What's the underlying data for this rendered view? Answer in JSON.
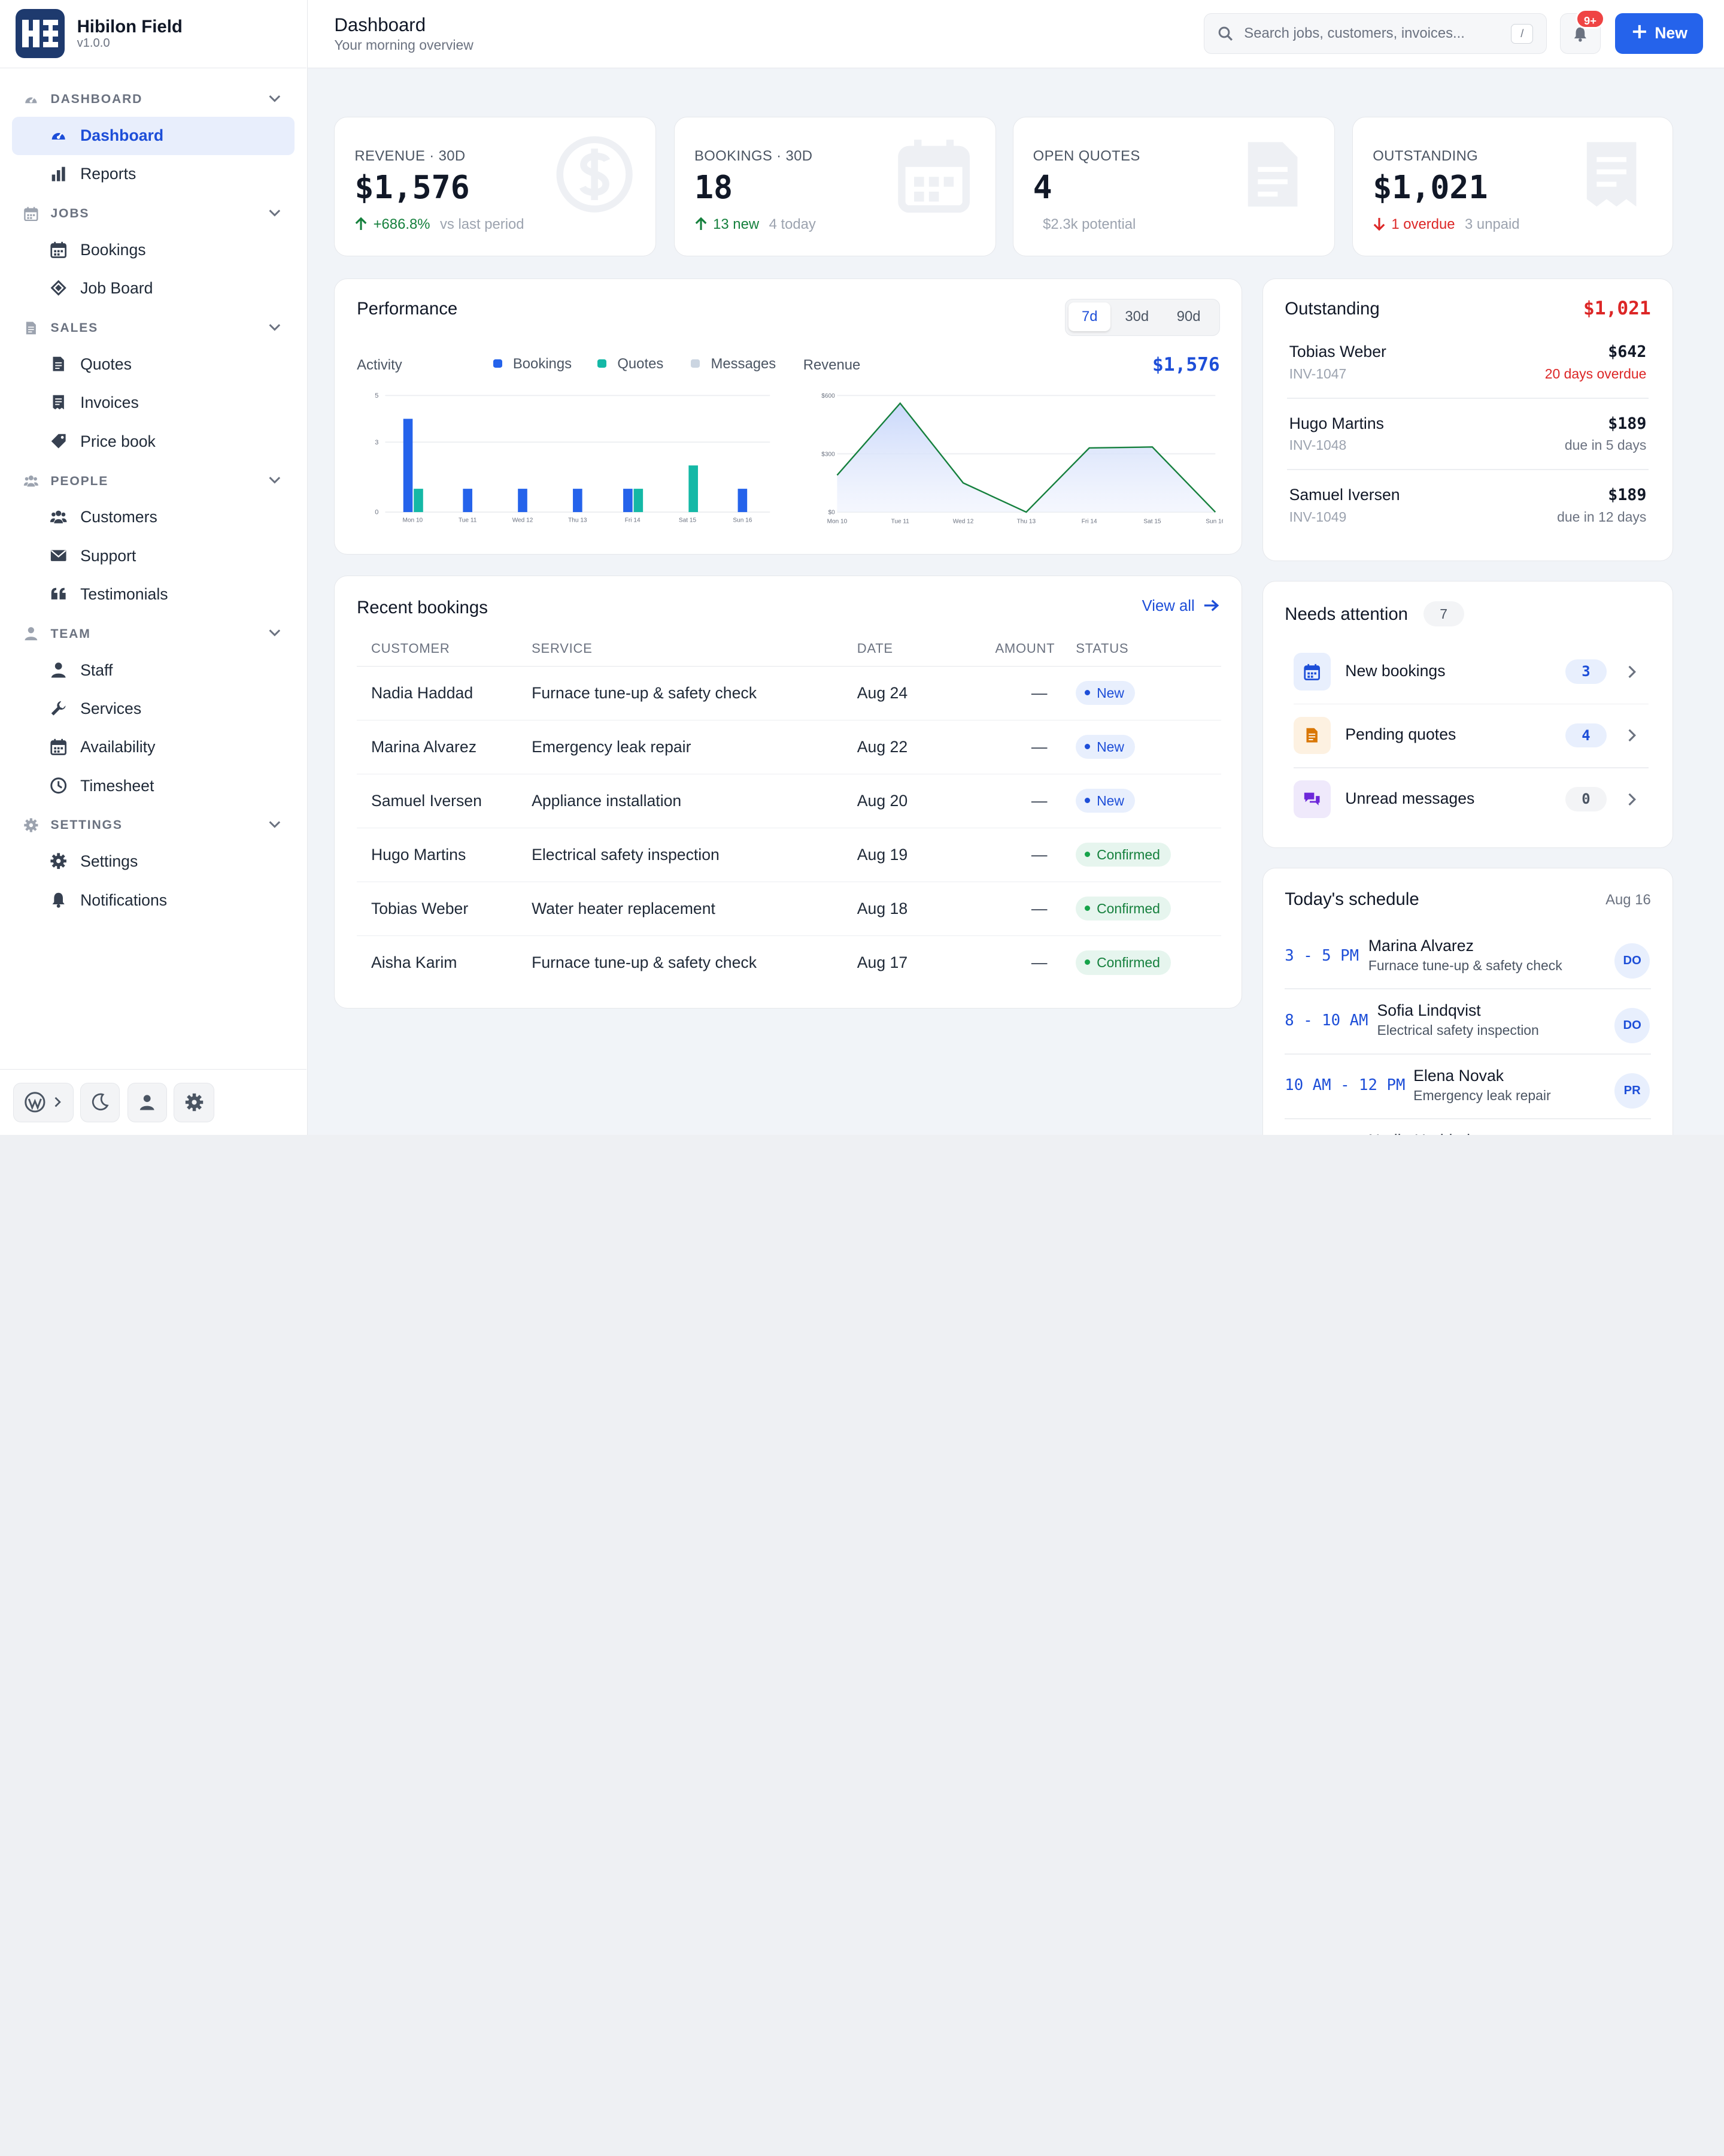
{
  "app": {
    "name": "Hibilon Field",
    "version": "v1.0.0"
  },
  "header": {
    "title": "Dashboard",
    "subtitle": "Your morning overview",
    "search_placeholder": "Search jobs, customers, invoices...",
    "search_shortcut": "/",
    "notification_badge": "9+",
    "new_label": "New"
  },
  "sidebar": {
    "sections": [
      {
        "label": "DASHBOARD",
        "icon": "gauge-icon",
        "items": [
          {
            "label": "Dashboard",
            "icon": "gauge-icon",
            "active": true
          },
          {
            "label": "Reports",
            "icon": "bar-chart-icon"
          }
        ]
      },
      {
        "label": "JOBS",
        "icon": "calendar-icon",
        "items": [
          {
            "label": "Bookings",
            "icon": "calendar-icon"
          },
          {
            "label": "Job Board",
            "icon": "ticket-icon"
          }
        ]
      },
      {
        "label": "SALES",
        "icon": "document-icon",
        "items": [
          {
            "label": "Quotes",
            "icon": "document-icon"
          },
          {
            "label": "Invoices",
            "icon": "invoice-icon"
          },
          {
            "label": "Price book",
            "icon": "tag-icon"
          }
        ]
      },
      {
        "label": "PEOPLE",
        "icon": "users-icon",
        "items": [
          {
            "label": "Customers",
            "icon": "users-icon"
          },
          {
            "label": "Support",
            "icon": "envelope-icon"
          },
          {
            "label": "Testimonials",
            "icon": "quote-icon"
          }
        ]
      },
      {
        "label": "TEAM",
        "icon": "user-icon",
        "items": [
          {
            "label": "Staff",
            "icon": "user-icon"
          },
          {
            "label": "Services",
            "icon": "wrench-icon"
          },
          {
            "label": "Availability",
            "icon": "calendar-icon"
          },
          {
            "label": "Timesheet",
            "icon": "clock-icon"
          }
        ]
      },
      {
        "label": "SETTINGS",
        "icon": "gear-icon",
        "items": [
          {
            "label": "Settings",
            "icon": "gear-icon"
          },
          {
            "label": "Notifications",
            "icon": "bell-icon"
          }
        ]
      }
    ],
    "footer_buttons": [
      "wordpress-icon",
      "moon-icon",
      "user-icon",
      "gear-icon"
    ]
  },
  "kpis": [
    {
      "label": "REVENUE · 30D",
      "value": "$1,576",
      "delta": "+686.8%",
      "delta_dir": "up",
      "note": "vs last period",
      "icon": "dollar-icon"
    },
    {
      "label": "BOOKINGS · 30D",
      "value": "18",
      "delta": "13 new",
      "delta_dir": "up",
      "note": "4 today",
      "icon": "calendar-icon"
    },
    {
      "label": "OPEN QUOTES",
      "value": "4",
      "delta": "",
      "delta_dir": "",
      "note": "$2.3k potential",
      "icon": "document-icon"
    },
    {
      "label": "OUTSTANDING",
      "value": "$1,021",
      "delta": "1 overdue",
      "delta_dir": "down",
      "note": "3 unpaid",
      "icon": "invoice-icon"
    }
  ],
  "performance": {
    "title": "Performance",
    "ranges": [
      "7d",
      "30d",
      "90d"
    ],
    "active_range": "7d",
    "activity_label": "Activity",
    "revenue_label": "Revenue",
    "revenue_total": "$1,576"
  },
  "chart_data": [
    {
      "type": "bar",
      "title": "Activity",
      "categories": [
        "Mon 10",
        "Tue 11",
        "Wed 12",
        "Thu 13",
        "Fri 14",
        "Sat 15",
        "Sun 16"
      ],
      "yticks": [
        0,
        3,
        5
      ],
      "ylim": [
        0,
        5
      ],
      "legend": "top",
      "series": [
        {
          "name": "Bookings",
          "color": "#2563eb",
          "values": [
            4,
            1,
            1,
            1,
            1,
            0,
            1
          ]
        },
        {
          "name": "Quotes",
          "color": "#14b8a6",
          "values": [
            1,
            0,
            0,
            0,
            1,
            2,
            0
          ]
        },
        {
          "name": "Messages",
          "color": "#cbd5e1",
          "values": [
            0,
            0,
            0,
            0,
            0,
            0,
            0
          ]
        }
      ]
    },
    {
      "type": "area",
      "title": "Revenue",
      "categories": [
        "Mon 10",
        "Tue 11",
        "Wed 12",
        "Thu 13",
        "Fri 14",
        "Sat 15",
        "Sun 16"
      ],
      "yticks": [
        "$0",
        "$300",
        "$600"
      ],
      "ylim": [
        0,
        600
      ],
      "color": "#15803d",
      "series": [
        {
          "values": [
            190,
            560,
            150,
            0,
            330,
            335,
            0
          ]
        }
      ]
    }
  ],
  "outstanding": {
    "title": "Outstanding",
    "total": "$1,021",
    "items": [
      {
        "name": "Tobias Weber",
        "invoice": "INV-1047",
        "amount": "$642",
        "due": "20 days overdue",
        "overdue": true
      },
      {
        "name": "Hugo Martins",
        "invoice": "INV-1048",
        "amount": "$189",
        "due": "due in 5 days",
        "overdue": false
      },
      {
        "name": "Samuel Iversen",
        "invoice": "INV-1049",
        "amount": "$189",
        "due": "due in 12 days",
        "overdue": false
      }
    ]
  },
  "recent": {
    "title": "Recent bookings",
    "view_all": "View all",
    "columns": [
      "CUSTOMER",
      "SERVICE",
      "DATE",
      "AMOUNT",
      "STATUS"
    ],
    "rows": [
      {
        "customer": "Nadia Haddad",
        "service": "Furnace tune-up & safety check",
        "date": "Aug 24",
        "amount": "—",
        "status": "New"
      },
      {
        "customer": "Marina Alvarez",
        "service": "Emergency leak repair",
        "date": "Aug 22",
        "amount": "—",
        "status": "New"
      },
      {
        "customer": "Samuel Iversen",
        "service": "Appliance installation",
        "date": "Aug 20",
        "amount": "—",
        "status": "New"
      },
      {
        "customer": "Hugo Martins",
        "service": "Electrical safety inspection",
        "date": "Aug 19",
        "amount": "—",
        "status": "Confirmed"
      },
      {
        "customer": "Tobias Weber",
        "service": "Water heater replacement",
        "date": "Aug 18",
        "amount": "—",
        "status": "Confirmed"
      },
      {
        "customer": "Aisha Karim",
        "service": "Furnace tune-up & safety check",
        "date": "Aug 17",
        "amount": "—",
        "status": "Confirmed"
      }
    ]
  },
  "attention": {
    "title": "Needs attention",
    "count": "7",
    "items": [
      {
        "label": "New bookings",
        "count": "3",
        "icon": "calendar-icon",
        "tint": "#e8effd",
        "color": "#1d4ed8"
      },
      {
        "label": "Pending quotes",
        "count": "4",
        "icon": "document-icon",
        "tint": "#fdf1e1",
        "color": "#d97706"
      },
      {
        "label": "Unread messages",
        "count": "0",
        "icon": "chat-icon",
        "tint": "#efe9fb",
        "color": "#6d28d9"
      }
    ]
  },
  "schedule": {
    "title": "Today's schedule",
    "date": "Aug 16",
    "items": [
      {
        "time": "3 - 5 PM",
        "name": "Marina Alvarez",
        "service": "Furnace tune-up & safety check",
        "initials": "DO"
      },
      {
        "time": "8 - 10 AM",
        "name": "Sofia Lindqvist",
        "service": "Electrical safety inspection",
        "initials": "DO"
      },
      {
        "time": "10 AM - 12 PM",
        "name": "Elena Novak",
        "service": "Emergency leak repair",
        "initials": "PR"
      },
      {
        "time": "",
        "name": "Nadia Haddad",
        "service": "",
        "initials": ""
      }
    ]
  }
}
